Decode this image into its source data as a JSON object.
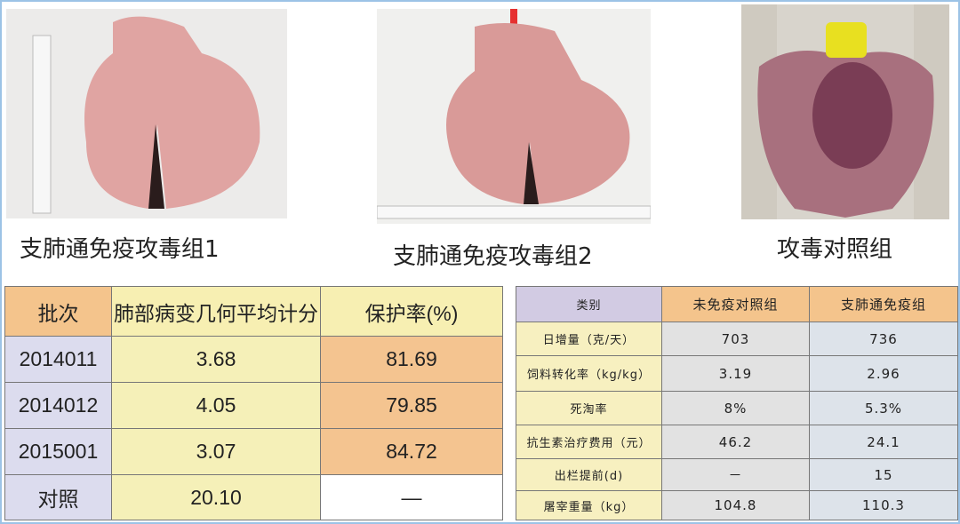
{
  "captions": [
    "支肺通免疫攻毒组1",
    "支肺通免疫攻毒组2",
    "攻毒对照组"
  ],
  "table1": {
    "header": [
      "批次",
      "肺部病变几何平均计分",
      "保护率(%)"
    ],
    "rows": [
      [
        "2014011",
        "3.68",
        "81.69"
      ],
      [
        "2014012",
        "4.05",
        "79.85"
      ],
      [
        "2015001",
        "3.07",
        "84.72"
      ],
      [
        "对照",
        "20.10",
        "—"
      ]
    ]
  },
  "table2": {
    "header": [
      "类别",
      "未免疫对照组",
      "支肺通免疫组"
    ],
    "rows": [
      [
        "日增量（克/天）",
        "703",
        "736"
      ],
      [
        "饲料转化率（kg/kg）",
        "3.19",
        "2.96"
      ],
      [
        "死淘率",
        "8%",
        "5.3%"
      ],
      [
        "抗生素治疗费用（元）",
        "46.2",
        "24.1"
      ],
      [
        "出栏提前(d)",
        "－",
        "15"
      ],
      [
        "屠宰重量（kg）",
        "104.8",
        "110.3"
      ]
    ]
  }
}
